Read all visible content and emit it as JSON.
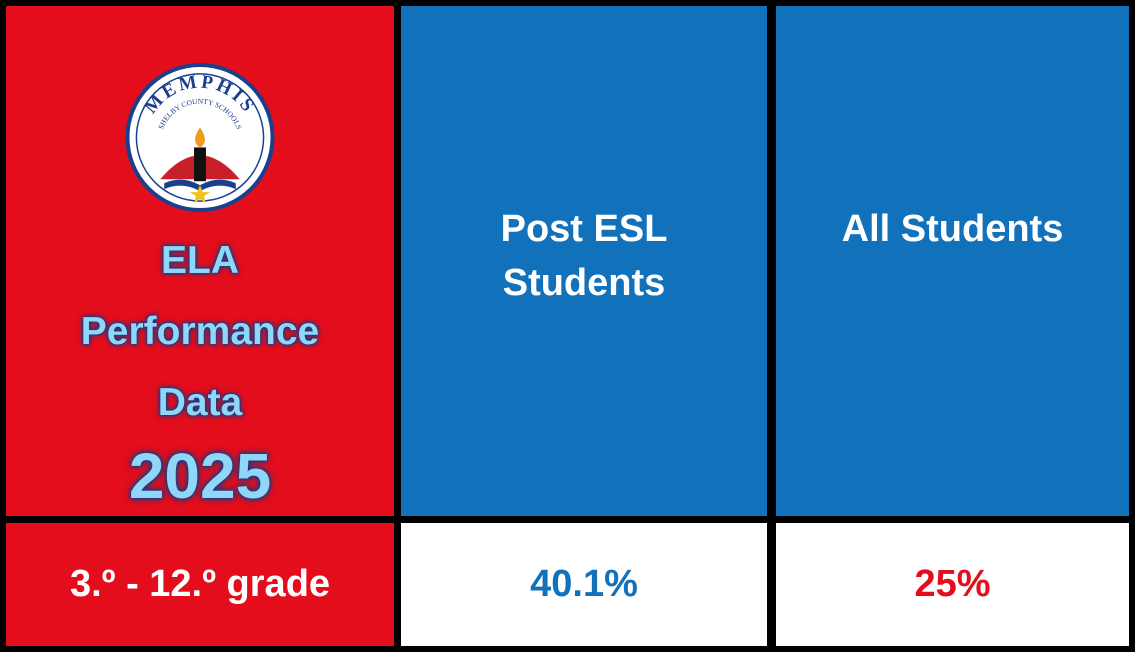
{
  "logo": {
    "name": "MEMPHIS",
    "subname": "SHELBY COUNTY SCHOOLS"
  },
  "header": {
    "title_lines": [
      "ELA",
      "Performance",
      "Data"
    ],
    "year": "2025"
  },
  "table": {
    "columns": [
      "Post ESL Students",
      "All Students"
    ],
    "rows": [
      [
        "3.º - 12.º grade",
        "40.1%",
        "25%"
      ]
    ]
  }
}
